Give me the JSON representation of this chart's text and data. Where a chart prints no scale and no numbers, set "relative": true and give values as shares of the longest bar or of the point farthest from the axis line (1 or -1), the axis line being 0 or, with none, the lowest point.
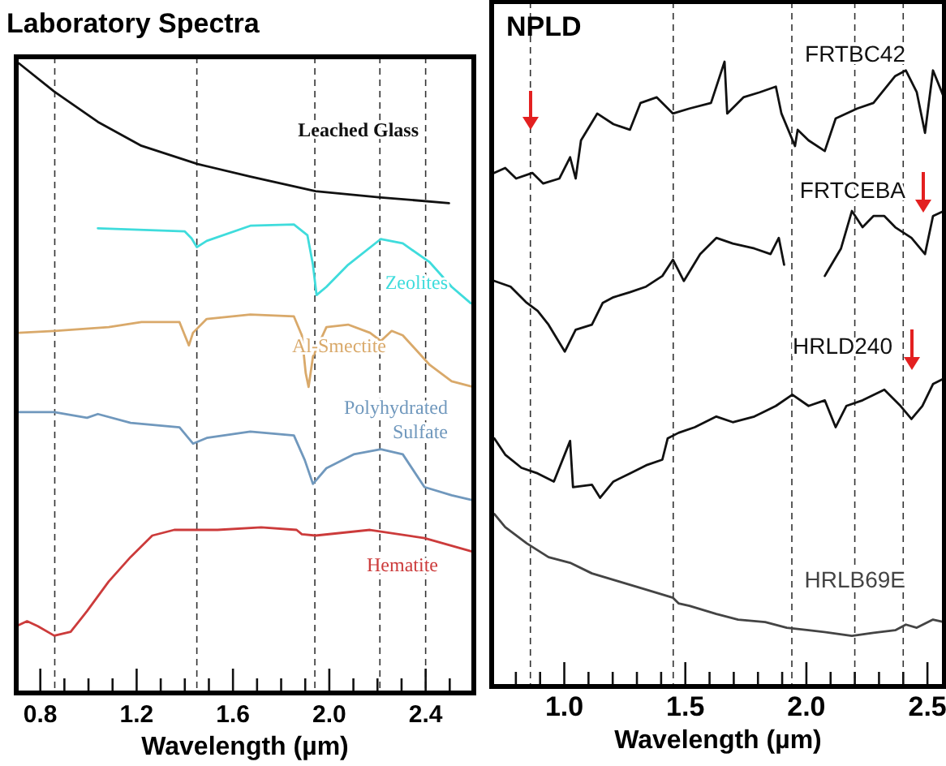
{
  "chart_data": [
    {
      "type": "line",
      "title": "Laboratory Spectra",
      "xlabel": "Wavelength (µm)",
      "relative": true,
      "legend": false,
      "xlim": [
        0.7,
        2.6
      ],
      "xticks": [
        0.8,
        {
          "value": 0.9,
          "label": null
        },
        {
          "value": 1.0,
          "label": null
        },
        {
          "value": 1.1,
          "label": null
        },
        1.2,
        {
          "value": 1.3,
          "label": null
        },
        {
          "value": 1.4,
          "label": null
        },
        {
          "value": 1.5,
          "label": null
        },
        1.6,
        {
          "value": 1.7,
          "label": null
        },
        {
          "value": 1.8,
          "label": null
        },
        {
          "value": 1.9,
          "label": null
        },
        {
          "value": 2.0,
          "label": "2.0"
        },
        {
          "value": 2.1,
          "label": null
        },
        {
          "value": 2.2,
          "label": null
        },
        {
          "value": 2.3,
          "label": null
        },
        2.4,
        {
          "value": 2.5,
          "label": null
        }
      ],
      "ref_lines": [
        {
          "axis": "x",
          "value": 0.86,
          "color": "#333333",
          "line_style": "dashed"
        },
        {
          "axis": "x",
          "value": 1.45,
          "color": "#333333",
          "line_style": "dashed"
        },
        {
          "axis": "x",
          "value": 1.94,
          "color": "#333333",
          "line_style": "dashed"
        },
        {
          "axis": "x",
          "value": 2.21,
          "color": "#333333",
          "line_style": "dashed"
        },
        {
          "axis": "x",
          "value": 2.4,
          "color": "#333333",
          "line_style": "dashed"
        }
      ],
      "series": [
        {
          "name": "Leached Glass",
          "color": "#111111",
          "x": [
            0.711,
            0.858,
            1.039,
            1.22,
            1.453,
            1.672,
            1.943,
            2.214,
            2.497
          ],
          "values": [
            1.0,
            0.955,
            0.907,
            0.869,
            0.84,
            0.82,
            0.797,
            0.787,
            0.778
          ]
        },
        {
          "name": "Zeolites",
          "color": "#3fdcdc",
          "x": [
            1.039,
            1.4,
            1.428,
            1.45,
            1.491,
            1.672,
            1.853,
            1.909,
            1.932,
            1.947,
            1.988,
            2.078,
            2.214,
            2.305,
            2.417,
            2.508,
            2.587
          ],
          "values": [
            0.738,
            0.733,
            0.722,
            0.708,
            0.718,
            0.742,
            0.744,
            0.727,
            0.68,
            0.632,
            0.645,
            0.68,
            0.721,
            0.714,
            0.684,
            0.645,
            0.619
          ]
        },
        {
          "name": "Al-Smectite",
          "color": "#d9a96a",
          "x": [
            0.711,
            0.858,
            1.084,
            1.22,
            1.378,
            1.4,
            1.417,
            1.434,
            1.491,
            1.672,
            1.853,
            1.886,
            1.902,
            1.914,
            1.932,
            1.988,
            2.078,
            2.169,
            2.214,
            2.259,
            2.305,
            2.417,
            2.508,
            2.598
          ],
          "values": [
            0.572,
            0.575,
            0.581,
            0.589,
            0.589,
            0.568,
            0.552,
            0.572,
            0.594,
            0.601,
            0.598,
            0.568,
            0.508,
            0.486,
            0.534,
            0.581,
            0.585,
            0.572,
            0.559,
            0.575,
            0.568,
            0.521,
            0.495,
            0.486
          ]
        },
        {
          "name": "Polyhydrated Sulfate",
          "color": "#7098bd",
          "x": [
            0.711,
            0.858,
            0.994,
            1.039,
            1.175,
            1.378,
            1.434,
            1.491,
            1.672,
            1.853,
            1.898,
            1.932,
            1.988,
            2.101,
            2.214,
            2.305,
            2.395,
            2.508,
            2.598
          ],
          "values": [
            0.446,
            0.446,
            0.437,
            0.443,
            0.429,
            0.422,
            0.396,
            0.405,
            0.415,
            0.409,
            0.37,
            0.332,
            0.357,
            0.379,
            0.387,
            0.379,
            0.327,
            0.314,
            0.306
          ]
        },
        {
          "name": "Hematite",
          "color": "#cc3b3b",
          "x": [
            0.711,
            0.745,
            0.79,
            0.858,
            0.926,
            0.994,
            1.084,
            1.175,
            1.265,
            1.356,
            1.536,
            1.717,
            1.864,
            1.886,
            1.943,
            2.169,
            2.395,
            2.598
          ],
          "values": [
            0.108,
            0.114,
            0.106,
            0.091,
            0.097,
            0.13,
            0.177,
            0.216,
            0.25,
            0.259,
            0.259,
            0.263,
            0.259,
            0.252,
            0.25,
            0.259,
            0.246,
            0.224
          ]
        }
      ]
    },
    {
      "type": "line",
      "title": "NPLD",
      "xlabel": "Wavelength (µm)",
      "relative": true,
      "legend": false,
      "xlim": [
        0.7,
        2.57
      ],
      "xticks": [
        {
          "value": 0.8,
          "label": null
        },
        {
          "value": 0.9,
          "label": null
        },
        {
          "value": 1.0,
          "label": "1.0"
        },
        {
          "value": 1.1,
          "label": null
        },
        {
          "value": 1.2,
          "label": null
        },
        {
          "value": 1.3,
          "label": null
        },
        {
          "value": 1.4,
          "label": null
        },
        1.5,
        {
          "value": 1.6,
          "label": null
        },
        {
          "value": 1.7,
          "label": null
        },
        {
          "value": 1.8,
          "label": null
        },
        {
          "value": 1.9,
          "label": null
        },
        {
          "value": 2.0,
          "label": "2.0"
        },
        {
          "value": 2.1,
          "label": null
        },
        {
          "value": 2.2,
          "label": null
        },
        {
          "value": 2.3,
          "label": null
        },
        {
          "value": 2.4,
          "label": null
        },
        2.5
      ],
      "ref_lines": [
        {
          "axis": "x",
          "value": 0.86,
          "color": "#333333",
          "line_style": "dashed"
        },
        {
          "axis": "x",
          "value": 1.45,
          "color": "#333333",
          "line_style": "dashed"
        },
        {
          "axis": "x",
          "value": 1.94,
          "color": "#333333",
          "line_style": "dashed"
        },
        {
          "axis": "x",
          "value": 2.2,
          "color": "#333333",
          "line_style": "dashed"
        },
        {
          "axis": "x",
          "value": 2.4,
          "color": "#333333",
          "line_style": "dashed"
        }
      ],
      "series": [
        {
          "name": "FRTBC42",
          "color": "#111111",
          "x": [
            0.711,
            0.756,
            0.801,
            0.868,
            0.913,
            0.98,
            1.024,
            1.047,
            1.069,
            1.136,
            1.203,
            1.271,
            1.315,
            1.382,
            1.449,
            1.517,
            1.606,
            1.662,
            1.673,
            1.74,
            1.807,
            1.874,
            1.897,
            1.953,
            1.964,
            2.009,
            2.076,
            2.121,
            2.21,
            2.277,
            2.367,
            2.411,
            2.456,
            2.49,
            2.523,
            2.568
          ],
          "values": [
            0.822,
            0.83,
            0.813,
            0.822,
            0.805,
            0.813,
            0.847,
            0.813,
            0.874,
            0.917,
            0.9,
            0.891,
            0.934,
            0.943,
            0.917,
            0.925,
            0.934,
            1.0,
            0.917,
            0.943,
            0.951,
            0.96,
            0.917,
            0.865,
            0.891,
            0.874,
            0.857,
            0.909,
            0.925,
            0.934,
            0.977,
            0.986,
            0.951,
            0.886,
            0.986,
            0.943
          ]
        },
        {
          "name": "FRTCEBA",
          "color": "#111111",
          "x": [
            0.711,
            0.778,
            0.845,
            0.89,
            0.935,
            1.002,
            1.047,
            1.114,
            1.159,
            1.203,
            1.271,
            1.338,
            1.405,
            1.449,
            1.494,
            1.561,
            1.628,
            1.696,
            1.785,
            1.852,
            1.886,
            1.908,
            2.0,
            2.076,
            2.143,
            2.188,
            2.232,
            2.277,
            2.322,
            2.367,
            2.434,
            2.49,
            2.523,
            2.568
          ],
          "values": [
            0.649,
            0.64,
            0.614,
            0.601,
            0.579,
            0.536,
            0.571,
            0.579,
            0.614,
            0.623,
            0.631,
            0.64,
            0.657,
            0.683,
            0.649,
            0.692,
            0.718,
            0.709,
            0.701,
            0.692,
            0.718,
            0.675,
            null,
            0.657,
            0.701,
            0.761,
            0.735,
            0.753,
            0.753,
            0.735,
            0.718,
            0.692,
            0.753,
            0.761
          ]
        },
        {
          "name": "HRLD240",
          "color": "#111111",
          "x": [
            0.711,
            0.756,
            0.823,
            0.89,
            0.957,
            1.024,
            1.036,
            1.114,
            1.148,
            1.203,
            1.271,
            1.338,
            1.405,
            1.427,
            1.472,
            1.539,
            1.628,
            1.696,
            1.785,
            1.874,
            1.942,
            2.009,
            2.076,
            2.121,
            2.165,
            2.232,
            2.322,
            2.389,
            2.434,
            2.479,
            2.523,
            2.568
          ],
          "values": [
            0.397,
            0.371,
            0.35,
            0.341,
            0.328,
            0.393,
            0.319,
            0.323,
            0.302,
            0.328,
            0.341,
            0.354,
            0.363,
            0.397,
            0.406,
            0.415,
            0.432,
            0.423,
            0.432,
            0.449,
            0.467,
            0.449,
            0.458,
            0.415,
            0.449,
            0.458,
            0.475,
            0.449,
            0.428,
            0.449,
            0.484,
            0.493
          ]
        },
        {
          "name": "HRLB69E",
          "color": "#444444",
          "x": [
            0.711,
            0.756,
            0.845,
            0.935,
            1.024,
            1.114,
            1.226,
            1.338,
            1.449,
            1.472,
            1.517,
            1.628,
            1.718,
            1.83,
            1.919,
            2.009,
            2.098,
            2.188,
            2.277,
            2.367,
            2.411,
            2.456,
            2.523,
            2.568
          ],
          "values": [
            0.276,
            0.255,
            0.229,
            0.207,
            0.198,
            0.181,
            0.168,
            0.155,
            0.142,
            0.133,
            0.129,
            0.116,
            0.107,
            0.103,
            0.094,
            0.09,
            0.086,
            0.081,
            0.086,
            0.09,
            0.099,
            0.094,
            0.107,
            0.103
          ]
        }
      ]
    }
  ]
}
